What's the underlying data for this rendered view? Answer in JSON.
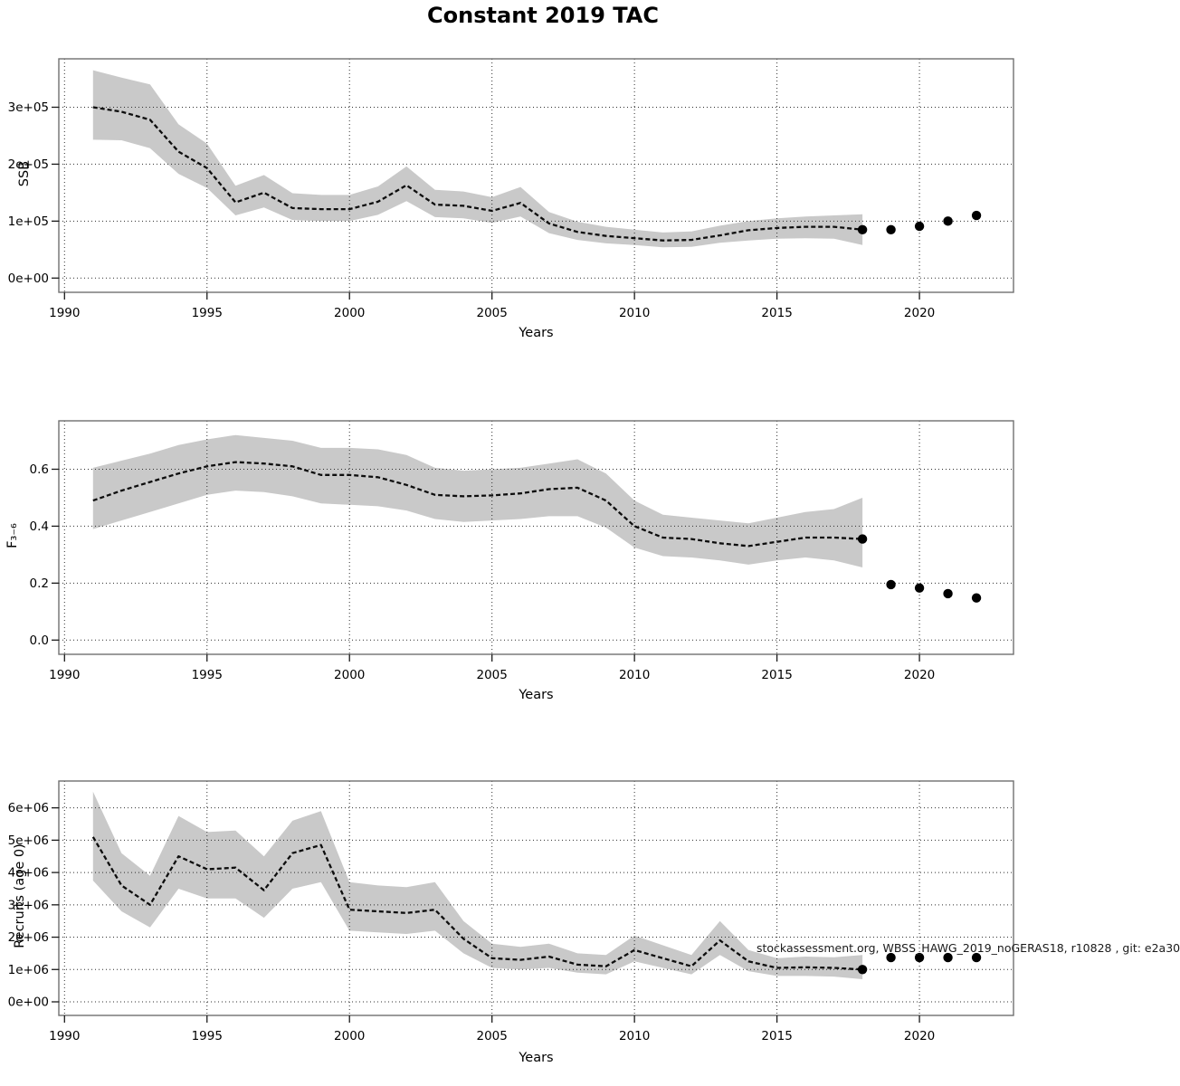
{
  "title": "Constant 2019 TAC",
  "watermark": "stockassessment.org, WBSS_HAWG_2019_noGERAS18, r10828 , git: e2a30",
  "chart_data": [
    {
      "type": "line",
      "title": "",
      "xlabel": "Years",
      "ylabel": "SSB",
      "grid": true,
      "band_color": "#c9c9c9",
      "line_color": "#0d0d0d",
      "dot_color": "#000000",
      "xlim": [
        1989.8,
        2023.3
      ],
      "ylim": [
        -25000,
        385000
      ],
      "xticks": [
        1990,
        1995,
        2000,
        2005,
        2010,
        2015,
        2020
      ],
      "xtick_labels": [
        "1990",
        "1995",
        "2000",
        "2005",
        "2010",
        "2015",
        "2020"
      ],
      "yticks": [
        0,
        100000,
        200000,
        300000
      ],
      "ytick_labels": [
        "0e+00",
        "1e+05",
        "2e+05",
        "3e+05"
      ],
      "x": [
        1991,
        1992,
        1993,
        1994,
        1995,
        1996,
        1997,
        1998,
        1999,
        2000,
        2001,
        2002,
        2003,
        2004,
        2005,
        2006,
        2007,
        2008,
        2009,
        2010,
        2011,
        2012,
        2013,
        2014,
        2015,
        2016,
        2017,
        2018
      ],
      "series": [
        {
          "name": "SSB estimate",
          "values": [
            300000,
            292000,
            278000,
            222000,
            193000,
            133000,
            150000,
            123000,
            121000,
            121000,
            134000,
            163000,
            129000,
            127000,
            118000,
            132000,
            96000,
            81000,
            74000,
            70000,
            66000,
            67000,
            75000,
            84000,
            88000,
            90000,
            90000,
            85000
          ]
        },
        {
          "name": "CI lower",
          "values": [
            243000,
            242000,
            228000,
            183000,
            158000,
            110000,
            124000,
            102000,
            100000,
            100000,
            111000,
            135000,
            107000,
            105000,
            97000,
            108000,
            79000,
            67000,
            61000,
            58000,
            54000,
            55000,
            62000,
            66000,
            69000,
            70000,
            69000,
            58000
          ]
        },
        {
          "name": "CI upper",
          "values": [
            365000,
            352000,
            340000,
            270000,
            236000,
            162000,
            181000,
            149000,
            146000,
            146000,
            161000,
            196000,
            155000,
            152000,
            142000,
            160000,
            116000,
            99000,
            90000,
            85000,
            80000,
            82000,
            92000,
            100000,
            105000,
            108000,
            110000,
            112000
          ]
        }
      ],
      "forecast_dots": {
        "x": [
          2018,
          2019,
          2020,
          2021,
          2022
        ],
        "y": [
          85000,
          85000,
          91000,
          100000,
          110000
        ]
      }
    },
    {
      "type": "line",
      "title": "",
      "xlabel": "Years",
      "ylabel": "F₃₋₆",
      "grid": true,
      "band_color": "#c9c9c9",
      "line_color": "#0d0d0d",
      "dot_color": "#000000",
      "xlim": [
        1989.8,
        2023.3
      ],
      "ylim": [
        -0.05,
        0.77
      ],
      "xticks": [
        1990,
        1995,
        2000,
        2005,
        2010,
        2015,
        2020
      ],
      "xtick_labels": [
        "1990",
        "1995",
        "2000",
        "2005",
        "2010",
        "2015",
        "2020"
      ],
      "yticks": [
        0.0,
        0.2,
        0.4,
        0.6
      ],
      "ytick_labels": [
        "0.0",
        "0.2",
        "0.4",
        "0.6"
      ],
      "x": [
        1991,
        1992,
        1993,
        1994,
        1995,
        1996,
        1997,
        1998,
        1999,
        2000,
        2001,
        2002,
        2003,
        2004,
        2005,
        2006,
        2007,
        2008,
        2009,
        2010,
        2011,
        2012,
        2013,
        2014,
        2015,
        2016,
        2017,
        2018
      ],
      "series": [
        {
          "name": "F estimate",
          "values": [
            0.49,
            0.525,
            0.555,
            0.585,
            0.61,
            0.625,
            0.62,
            0.61,
            0.58,
            0.58,
            0.572,
            0.545,
            0.51,
            0.505,
            0.508,
            0.515,
            0.53,
            0.535,
            0.49,
            0.4,
            0.36,
            0.355,
            0.34,
            0.33,
            0.345,
            0.36,
            0.36,
            0.355
          ]
        },
        {
          "name": "CI lower",
          "values": [
            0.39,
            0.42,
            0.45,
            0.48,
            0.51,
            0.525,
            0.52,
            0.505,
            0.48,
            0.475,
            0.47,
            0.455,
            0.425,
            0.415,
            0.42,
            0.425,
            0.435,
            0.435,
            0.395,
            0.325,
            0.295,
            0.29,
            0.28,
            0.265,
            0.28,
            0.29,
            0.28,
            0.255
          ]
        },
        {
          "name": "CI upper",
          "values": [
            0.605,
            0.63,
            0.655,
            0.685,
            0.705,
            0.72,
            0.71,
            0.7,
            0.675,
            0.675,
            0.67,
            0.65,
            0.605,
            0.595,
            0.6,
            0.605,
            0.62,
            0.635,
            0.585,
            0.49,
            0.44,
            0.43,
            0.42,
            0.41,
            0.43,
            0.45,
            0.46,
            0.5
          ]
        }
      ],
      "forecast_dots": {
        "x": [
          2018,
          2019,
          2020,
          2021,
          2022
        ],
        "y": [
          0.355,
          0.195,
          0.183,
          0.163,
          0.148
        ]
      }
    },
    {
      "type": "line",
      "title": "",
      "xlabel": "Years",
      "ylabel": "Recruits (age 0)",
      "grid": true,
      "band_color": "#c9c9c9",
      "line_color": "#0d0d0d",
      "dot_color": "#000000",
      "xlim": [
        1989.8,
        2023.3
      ],
      "ylim": [
        -420000,
        6830000
      ],
      "xticks": [
        1990,
        1995,
        2000,
        2005,
        2010,
        2015,
        2020
      ],
      "xtick_labels": [
        "1990",
        "1995",
        "2000",
        "2005",
        "2010",
        "2015",
        "2020"
      ],
      "yticks": [
        0,
        1000000,
        2000000,
        3000000,
        4000000,
        5000000,
        6000000
      ],
      "ytick_labels": [
        "0e+00",
        "1e+06",
        "2e+06",
        "3e+06",
        "4e+06",
        "5e+06",
        "6e+06"
      ],
      "x": [
        1991,
        1992,
        1993,
        1994,
        1995,
        1996,
        1997,
        1998,
        1999,
        2000,
        2001,
        2002,
        2003,
        2004,
        2005,
        2006,
        2007,
        2008,
        2009,
        2010,
        2011,
        2012,
        2013,
        2014,
        2015,
        2016,
        2017,
        2018
      ],
      "series": [
        {
          "name": "Recruitment estimate",
          "values": [
            5100000,
            3600000,
            3000000,
            4500000,
            4100000,
            4150000,
            3450000,
            4600000,
            4850000,
            2850000,
            2800000,
            2750000,
            2850000,
            1950000,
            1350000,
            1300000,
            1400000,
            1150000,
            1100000,
            1600000,
            1350000,
            1100000,
            1900000,
            1250000,
            1050000,
            1070000,
            1050000,
            1000000
          ]
        },
        {
          "name": "CI lower",
          "values": [
            3750000,
            2800000,
            2300000,
            3500000,
            3200000,
            3200000,
            2600000,
            3500000,
            3700000,
            2200000,
            2150000,
            2100000,
            2200000,
            1500000,
            1050000,
            1000000,
            1050000,
            900000,
            850000,
            1250000,
            1050000,
            850000,
            1450000,
            950000,
            800000,
            800000,
            780000,
            700000
          ]
        },
        {
          "name": "CI upper",
          "values": [
            6500000,
            4600000,
            3900000,
            5750000,
            5250000,
            5300000,
            4500000,
            5600000,
            5900000,
            3700000,
            3600000,
            3550000,
            3700000,
            2500000,
            1800000,
            1700000,
            1800000,
            1500000,
            1450000,
            2050000,
            1750000,
            1450000,
            2500000,
            1600000,
            1350000,
            1400000,
            1380000,
            1450000
          ]
        }
      ],
      "forecast_dots": {
        "x": [
          2018,
          2019,
          2020,
          2021,
          2022
        ],
        "y": [
          1000000,
          1370000,
          1370000,
          1370000,
          1370000
        ]
      }
    }
  ]
}
